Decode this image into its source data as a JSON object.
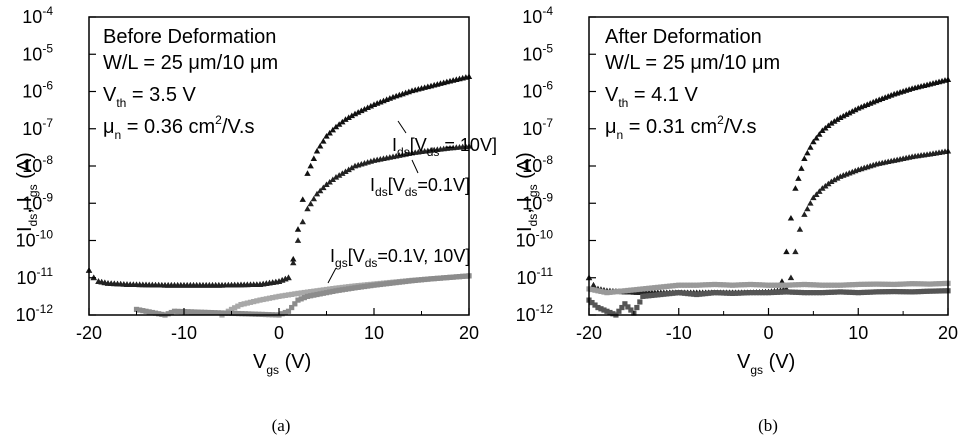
{
  "chart_data": [
    {
      "type": "scatter",
      "panel_label": "(a)",
      "xlabel": {
        "main": "V",
        "sub": "gs",
        "rest": " (V)"
      },
      "ylabel": {
        "p1": "I",
        "s1": "ds",
        "p2": ", I",
        "s2": "gs",
        "p3": " (A)"
      },
      "xlim": [
        -20,
        20
      ],
      "ylim_log10": [
        -12,
        -4
      ],
      "yscale": "log",
      "xticks": [
        "-20",
        "-10",
        "0",
        "10",
        "20"
      ],
      "yticks": [
        {
          "base": "10",
          "exp": "-12"
        },
        {
          "base": "10",
          "exp": "-11"
        },
        {
          "base": "10",
          "exp": "-10"
        },
        {
          "base": "10",
          "exp": "-9"
        },
        {
          "base": "10",
          "exp": "-8"
        },
        {
          "base": "10",
          "exp": "-7"
        },
        {
          "base": "10",
          "exp": "-6"
        },
        {
          "base": "10",
          "exp": "-5"
        },
        {
          "base": "10",
          "exp": "-4"
        }
      ],
      "info": {
        "line1": "Before Deformation",
        "line2": "W/L = 25 μm/10 μm",
        "vth_main": "V",
        "vth_sub": "th",
        "vth_rest": " = 3.5 V",
        "mu_main": "μ",
        "mu_sub": "n",
        "mu_rest": " = 0.36 cm",
        "mu_sup": "2",
        "mu_tail": "/V.s"
      },
      "annotations": {
        "a1": {
          "p1": "I",
          "s1": "ds",
          "p2": "[V",
          "s2": "ds",
          "p3": " = 10V]"
        },
        "a2": {
          "p1": "I",
          "s1": "ds",
          "p2": "[V",
          "s2": "ds",
          "p3": "=0.1V]"
        },
        "a3": {
          "p1": "I",
          "s1": "gs",
          "p2": "[V",
          "s2": "ds",
          "p3": "=0.1V, 10V]"
        }
      },
      "series": [
        {
          "color": "#111111",
          "marker": "triangle",
          "x": [
            -20,
            -19.5,
            -19,
            -18,
            -16,
            -14,
            -12,
            -10,
            -8,
            -6,
            -4,
            -2,
            0,
            1,
            1.5,
            2,
            2.5,
            3,
            4,
            5,
            6,
            7,
            8,
            10,
            12,
            14,
            16,
            18,
            20
          ],
          "log_y": [
            -10.8,
            -11.0,
            -11.1,
            -11.15,
            -11.18,
            -11.19,
            -11.2,
            -11.2,
            -11.2,
            -11.2,
            -11.19,
            -11.18,
            -11.1,
            -11.0,
            -10.5,
            -9.7,
            -8.9,
            -8.2,
            -7.6,
            -7.2,
            -6.95,
            -6.75,
            -6.6,
            -6.35,
            -6.15,
            -5.98,
            -5.85,
            -5.72,
            -5.6
          ]
        },
        {
          "color": "#222222",
          "marker": "triangle",
          "x": [
            -20,
            -19.5,
            -19,
            -18,
            -16,
            -14,
            -12,
            -10,
            -8,
            -6,
            -4,
            -2,
            0,
            1,
            1.5,
            2,
            2.5,
            3,
            4,
            5,
            6,
            7,
            8,
            10,
            12,
            14,
            16,
            18,
            20
          ],
          "log_y": [
            -10.8,
            -11.0,
            -11.1,
            -11.15,
            -11.18,
            -11.19,
            -11.2,
            -11.2,
            -11.2,
            -11.2,
            -11.19,
            -11.18,
            -11.1,
            -11.0,
            -10.6,
            -10.0,
            -9.5,
            -9.15,
            -8.75,
            -8.5,
            -8.3,
            -8.15,
            -8.0,
            -7.85,
            -7.75,
            -7.65,
            -7.58,
            -7.52,
            -7.47
          ]
        },
        {
          "color": "#a8a8a8",
          "marker": "square",
          "x": [
            -6,
            -5,
            -4,
            -2,
            0,
            2,
            4,
            6,
            8,
            10,
            12,
            14,
            16,
            18,
            20
          ],
          "log_y": [
            -12,
            -11.85,
            -11.72,
            -11.6,
            -11.5,
            -11.42,
            -11.35,
            -11.28,
            -11.22,
            -11.17,
            -11.12,
            -11.07,
            -11.03,
            -10.99,
            -10.95
          ]
        },
        {
          "color": "#8c8c8c",
          "marker": "square",
          "x": [
            -15,
            -14,
            -13,
            -12,
            -11,
            0,
            1,
            2,
            3,
            4,
            6,
            8,
            10,
            12,
            14,
            16,
            18,
            20
          ],
          "log_y": [
            -11.85,
            -11.9,
            -11.95,
            -12,
            -11.9,
            -12,
            -11.9,
            -11.6,
            -11.5,
            -11.45,
            -11.35,
            -11.27,
            -11.2,
            -11.14,
            -11.08,
            -11.03,
            -10.99,
            -10.95
          ]
        }
      ]
    },
    {
      "type": "scatter",
      "panel_label": "(b)",
      "xlabel": {
        "main": "V",
        "sub": "gs",
        "rest": " (V)"
      },
      "ylabel": {
        "p1": "I",
        "s1": "ds",
        "p2": ", I",
        "s2": "gs",
        "p3": " (A)"
      },
      "xlim": [
        -20,
        20
      ],
      "ylim_log10": [
        -12,
        -4
      ],
      "yscale": "log",
      "xticks": [
        "-20",
        "-10",
        "0",
        "10",
        "20"
      ],
      "yticks": [
        {
          "base": "10",
          "exp": "-12"
        },
        {
          "base": "10",
          "exp": "-11"
        },
        {
          "base": "10",
          "exp": "-10"
        },
        {
          "base": "10",
          "exp": "-9"
        },
        {
          "base": "10",
          "exp": "-8"
        },
        {
          "base": "10",
          "exp": "-7"
        },
        {
          "base": "10",
          "exp": "-6"
        },
        {
          "base": "10",
          "exp": "-5"
        },
        {
          "base": "10",
          "exp": "-4"
        }
      ],
      "info": {
        "line1": "After Deformation",
        "line2": "W/L = 25 μm/10 μm",
        "vth_main": "V",
        "vth_sub": "th",
        "vth_rest": " = 4.1 V",
        "mu_main": "μ",
        "mu_sub": "n",
        "mu_rest": " = 0.31 cm",
        "mu_sup": "2",
        "mu_tail": "/V.s"
      },
      "series": [
        {
          "color": "#111111",
          "marker": "triangle",
          "x": [
            -20,
            -19.5,
            -19,
            -18,
            -16,
            -14,
            -12,
            -10,
            -8,
            -6,
            -4,
            -2,
            0,
            1,
            1.5,
            2,
            2.5,
            3,
            4,
            5,
            6,
            7,
            8,
            10,
            12,
            14,
            16,
            18,
            20
          ],
          "log_y": [
            -11.0,
            -11.2,
            -11.3,
            -11.35,
            -11.38,
            -11.4,
            -11.4,
            -11.4,
            -11.4,
            -11.4,
            -11.4,
            -11.4,
            -11.38,
            -11.35,
            -11.1,
            -10.3,
            -9.4,
            -8.6,
            -7.8,
            -7.35,
            -7.05,
            -6.85,
            -6.7,
            -6.45,
            -6.25,
            -6.07,
            -5.92,
            -5.8,
            -5.68
          ]
        },
        {
          "color": "#222222",
          "marker": "triangle",
          "x": [
            -20,
            -19.5,
            -19,
            -18,
            -16,
            -14,
            -12,
            -10,
            -8,
            -6,
            -4,
            -2,
            0,
            1,
            2,
            2.5,
            3,
            3.5,
            4,
            5,
            6,
            7,
            8,
            10,
            12,
            14,
            16,
            18,
            20
          ],
          "log_y": [
            -11.0,
            -11.2,
            -11.3,
            -11.35,
            -11.38,
            -11.4,
            -11.4,
            -11.4,
            -11.4,
            -11.4,
            -11.4,
            -11.4,
            -11.38,
            -11.35,
            -11.3,
            -11.0,
            -10.3,
            -9.7,
            -9.3,
            -8.85,
            -8.6,
            -8.42,
            -8.28,
            -8.1,
            -7.95,
            -7.85,
            -7.75,
            -7.68,
            -7.6
          ]
        },
        {
          "color": "#999999",
          "marker": "square",
          "x": [
            -20,
            -18,
            -16,
            -14,
            -12,
            -10,
            -8,
            -6,
            -4,
            -2,
            0,
            2,
            4,
            6,
            8,
            10,
            12,
            14,
            16,
            18,
            20
          ],
          "log_y": [
            -11.3,
            -11.4,
            -11.35,
            -11.3,
            -11.25,
            -11.2,
            -11.2,
            -11.18,
            -11.2,
            -11.18,
            -11.2,
            -11.2,
            -11.18,
            -11.2,
            -11.2,
            -11.18,
            -11.17,
            -11.18,
            -11.16,
            -11.17,
            -11.15
          ]
        },
        {
          "color": "#555555",
          "marker": "square",
          "x": [
            -20,
            -19,
            -18,
            -17,
            -16,
            -15,
            -14,
            -12,
            -10,
            -8,
            -6,
            -4,
            -2,
            0,
            2,
            4,
            6,
            8,
            10,
            12,
            14,
            16,
            18,
            20
          ],
          "log_y": [
            -11.6,
            -11.8,
            -11.9,
            -12,
            -11.7,
            -11.95,
            -11.5,
            -11.45,
            -11.4,
            -11.45,
            -11.4,
            -11.42,
            -11.4,
            -11.4,
            -11.38,
            -11.4,
            -11.4,
            -11.38,
            -11.4,
            -11.38,
            -11.37,
            -11.38,
            -11.36,
            -11.35
          ]
        }
      ]
    }
  ]
}
